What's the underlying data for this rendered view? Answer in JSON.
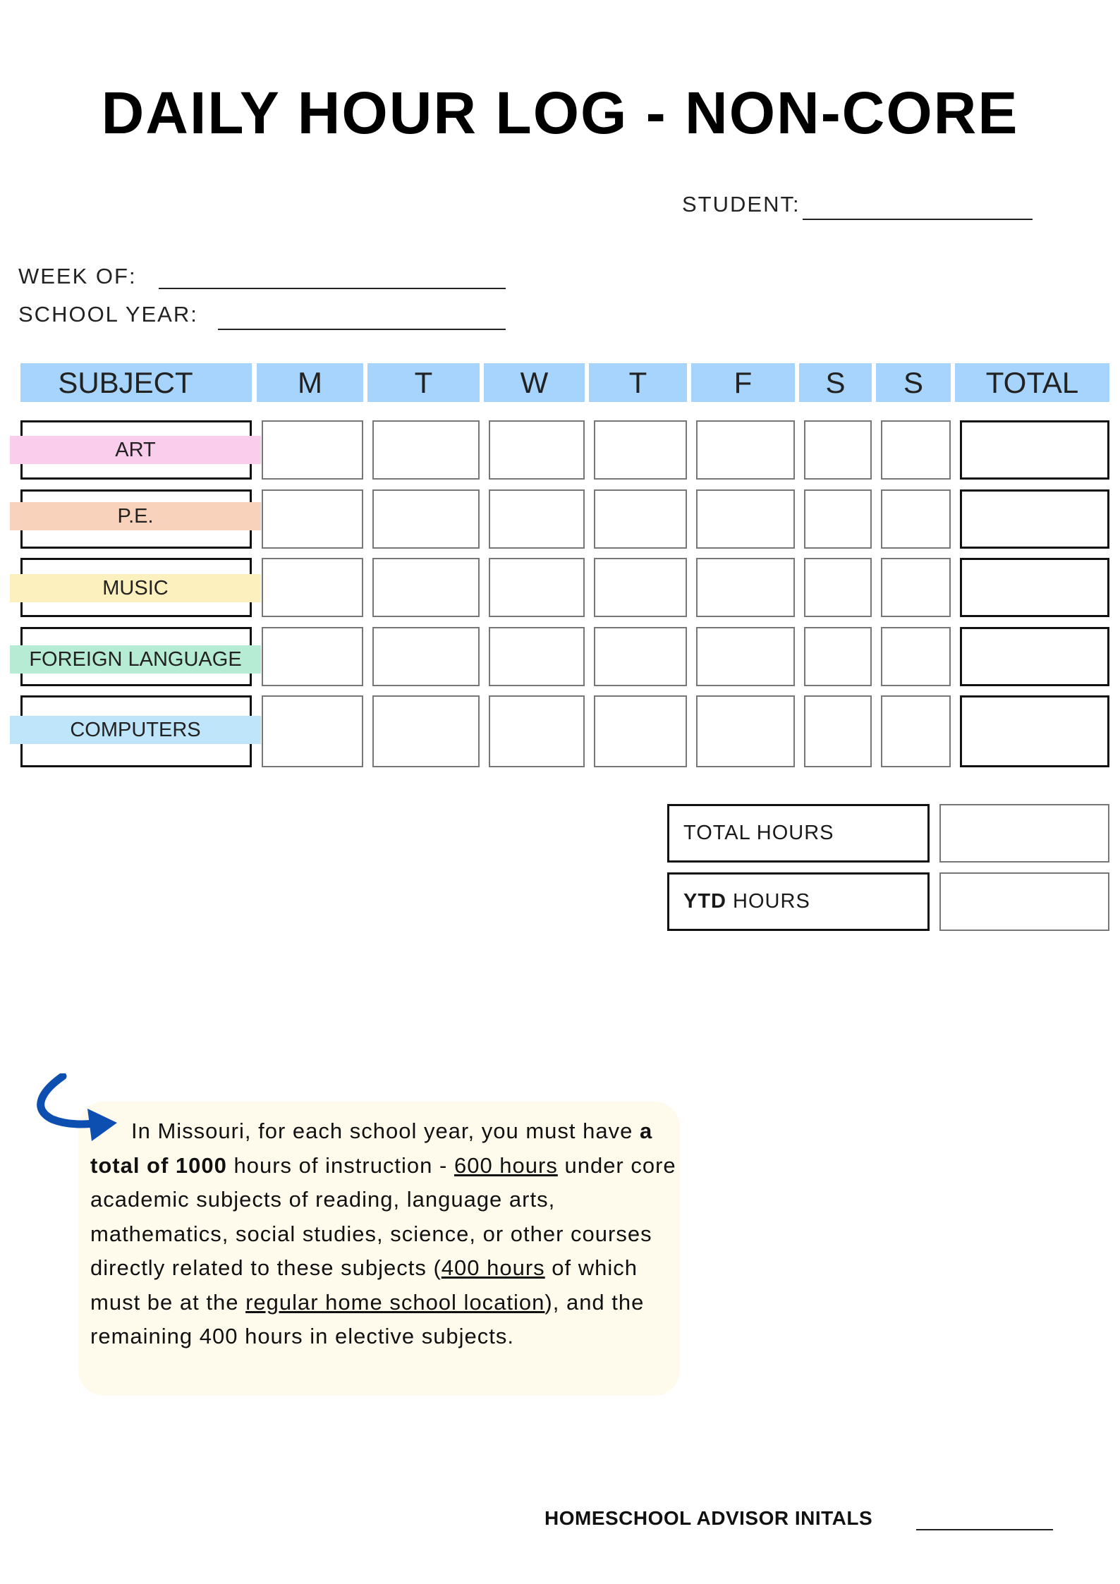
{
  "title": "DAILY HOUR LOG - NON-CORE",
  "fields": {
    "student": "STUDENT:",
    "week_of": "WEEK OF:",
    "school_year": "SCHOOL YEAR:"
  },
  "table": {
    "headers": [
      "SUBJECT",
      "M",
      "T",
      "W",
      "T",
      "F",
      "S",
      "S",
      "TOTAL"
    ],
    "subjects": [
      {
        "label": "ART",
        "color": "#fbcdec"
      },
      {
        "label": "P.E.",
        "color": "#f9d2bb"
      },
      {
        "label": "MUSIC",
        "color": "#fdf0bf"
      },
      {
        "label": "FOREIGN LANGUAGE",
        "color": "#b7ecd4"
      },
      {
        "label": "COMPUTERS",
        "color": "#bfe5fb"
      }
    ],
    "header_color": "#a6d4fc"
  },
  "totals": {
    "total_hours": "TOTAL HOURS",
    "ytd_bold": "YTD",
    "ytd_rest": " HOURS"
  },
  "callout": {
    "icon": "curved-arrow-icon",
    "arrow_color": "#0d4fb0",
    "parts": [
      {
        "text": "In Missouri, for each school year, you must have ",
        "style": "normal"
      },
      {
        "text": "a total of 1000",
        "style": "bold"
      },
      {
        "text": " hours of instruction - ",
        "style": "normal"
      },
      {
        "text": "600 hours",
        "style": "underline"
      },
      {
        "text": " under core academic subjects of reading, language arts, mathematics, social studies, science, or other courses directly related to these subjects (",
        "style": "normal"
      },
      {
        "text": "400 hours",
        "style": "underline"
      },
      {
        "text": " of which must be at the ",
        "style": "normal"
      },
      {
        "text": "regular home school location",
        "style": "underline"
      },
      {
        "text": "), and the remaining 400 hours in elective subjects.",
        "style": "normal"
      }
    ]
  },
  "advisor": "HOMESCHOOL ADVISOR INITALS"
}
